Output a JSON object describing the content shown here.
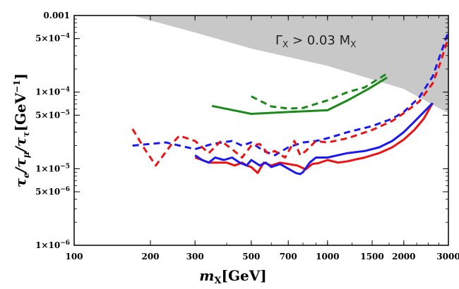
{
  "chart_data": {
    "type": "line",
    "title": "",
    "xlabel": "m_X [GeV]",
    "ylabel": "τ_e/τ_μ/τ_τ [GeV^-1]",
    "x_scale": "log",
    "y_scale": "log",
    "xlim": [
      100,
      3000
    ],
    "ylim": [
      1e-06,
      0.001
    ],
    "grid": false,
    "x_ticks": [
      100,
      200,
      300,
      500,
      700,
      1000,
      1500,
      2000,
      3000
    ],
    "x_tick_labels": [
      "100",
      "200",
      "300",
      "500",
      "700",
      "1000",
      "1500",
      "2000",
      "3000"
    ],
    "y_ticks": [
      1e-06,
      5e-06,
      1e-05,
      5e-05,
      0.0001,
      0.0005,
      0.001
    ],
    "y_tick_labels": [
      {
        "mant": "1×10",
        "exp": "−6"
      },
      {
        "mant": "5×10",
        "exp": "−6"
      },
      {
        "mant": "1×10",
        "exp": "−5"
      },
      {
        "mant": "5×10",
        "exp": "−5"
      },
      {
        "mant": "1×10",
        "exp": "−4"
      },
      {
        "mant": "5×10",
        "exp": "−4"
      },
      {
        "mant": "0.001",
        "exp": ""
      }
    ],
    "excluded_region": {
      "label": "Γ_X > 0.03 M_X",
      "color": "#c8c8c8",
      "boundary": [
        [
          170,
          0.001
        ],
        [
          300,
          0.0006
        ],
        [
          500,
          0.00037
        ],
        [
          1000,
          0.00022
        ],
        [
          2000,
          0.00011
        ],
        [
          3000,
          5.3e-05
        ]
      ]
    },
    "series": [
      {
        "name": "green-solid",
        "color": "#1a8a1a",
        "dash": "solid",
        "x": [
          350,
          500,
          700,
          1000,
          1200,
          1450,
          1720
        ],
        "y": [
          6.6e-05,
          5.2e-05,
          5.5e-05,
          5.8e-05,
          7.8e-05,
          0.00011,
          0.000155
        ]
      },
      {
        "name": "green-dashed",
        "color": "#1a8a1a",
        "dash": "dashed",
        "x": [
          500,
          600,
          700,
          800,
          1000,
          1200,
          1400,
          1720
        ],
        "y": [
          8.8e-05,
          6.5e-05,
          6.1e-05,
          6.2e-05,
          7.8e-05,
          0.0001,
          0.000115,
          0.000175
        ]
      },
      {
        "name": "blue-dashed",
        "color": "#1a1aee",
        "dash": "dashed",
        "x": [
          170,
          230,
          300,
          350,
          420,
          460,
          500,
          560,
          620,
          700,
          800,
          900,
          1000,
          1200,
          1500,
          1800,
          2000,
          2300,
          2600,
          2800,
          3000
        ],
        "y": [
          2e-05,
          2.2e-05,
          1.8e-05,
          2.1e-05,
          2.3e-05,
          2e-05,
          2.2e-05,
          1.7e-05,
          1.5e-05,
          1.9e-05,
          2.2e-05,
          2.3e-05,
          2.5e-05,
          3e-05,
          3.6e-05,
          4.5e-05,
          5.5e-05,
          8.5e-05,
          0.00016,
          0.00032,
          0.00062
        ]
      },
      {
        "name": "red-dashed",
        "color": "#ee1111",
        "dash": "dashed",
        "x": [
          170,
          190,
          210,
          240,
          260,
          300,
          340,
          380,
          420,
          460,
          500,
          540,
          580,
          620,
          680,
          740,
          780,
          820,
          900,
          1000,
          1200,
          1500,
          1800,
          2000,
          2300,
          2600,
          2800,
          3000
        ],
        "y": [
          3.3e-05,
          1.8e-05,
          1.1e-05,
          2e-05,
          2.7e-05,
          2.3e-05,
          1.6e-05,
          2.3e-05,
          1.8e-05,
          1.4e-05,
          2e-05,
          2.1e-05,
          1.6e-05,
          1.7e-05,
          1.4e-05,
          2.3e-05,
          1.5e-05,
          1.7e-05,
          2.3e-05,
          2.2e-05,
          2.5e-05,
          3.2e-05,
          4.2e-05,
          5.3e-05,
          7.5e-05,
          0.00013,
          0.00025,
          0.00052
        ]
      },
      {
        "name": "red-solid",
        "color": "#ee1111",
        "dash": "solid",
        "x": [
          300,
          320,
          340,
          360,
          400,
          430,
          460,
          480,
          500,
          530,
          560,
          600,
          650,
          700,
          760,
          820,
          870,
          920,
          1000,
          1100,
          1200,
          1400,
          1600,
          1800,
          2000,
          2200,
          2400,
          2600
        ],
        "y": [
          1.4e-05,
          1.3e-05,
          1.2e-05,
          1.2e-05,
          1.2e-05,
          1.1e-05,
          1.2e-05,
          1.1e-05,
          1.05e-05,
          8.8e-06,
          1.2e-05,
          1.1e-05,
          1.2e-05,
          1.15e-05,
          1.1e-05,
          9.8e-06,
          1.15e-05,
          1.18e-05,
          1.3e-05,
          1.2e-05,
          1.25e-05,
          1.4e-05,
          1.6e-05,
          1.9e-05,
          2.4e-05,
          3.2e-05,
          4.5e-05,
          7.2e-05
        ]
      },
      {
        "name": "blue-solid",
        "color": "#1a1aee",
        "dash": "solid",
        "x": [
          300,
          320,
          340,
          360,
          390,
          420,
          450,
          480,
          500,
          540,
          570,
          600,
          650,
          700,
          750,
          780,
          800,
          850,
          900,
          1000,
          1100,
          1200,
          1400,
          1600,
          1800,
          2000,
          2200,
          2400,
          2600
        ],
        "y": [
          1.5e-05,
          1.3e-05,
          1.2e-05,
          1.4e-05,
          1.3e-05,
          1.4e-05,
          1.2e-05,
          1.1e-05,
          1.3e-05,
          1.1e-05,
          1.2e-05,
          1.05e-05,
          1.15e-05,
          1e-05,
          8.8e-06,
          8.5e-06,
          9e-06,
          1.2e-05,
          1.4e-05,
          1.4e-05,
          1.5e-05,
          1.6e-05,
          1.7e-05,
          1.9e-05,
          2.3e-05,
          3e-05,
          4.1e-05,
          5.5e-05,
          7.2e-05
        ]
      }
    ]
  }
}
